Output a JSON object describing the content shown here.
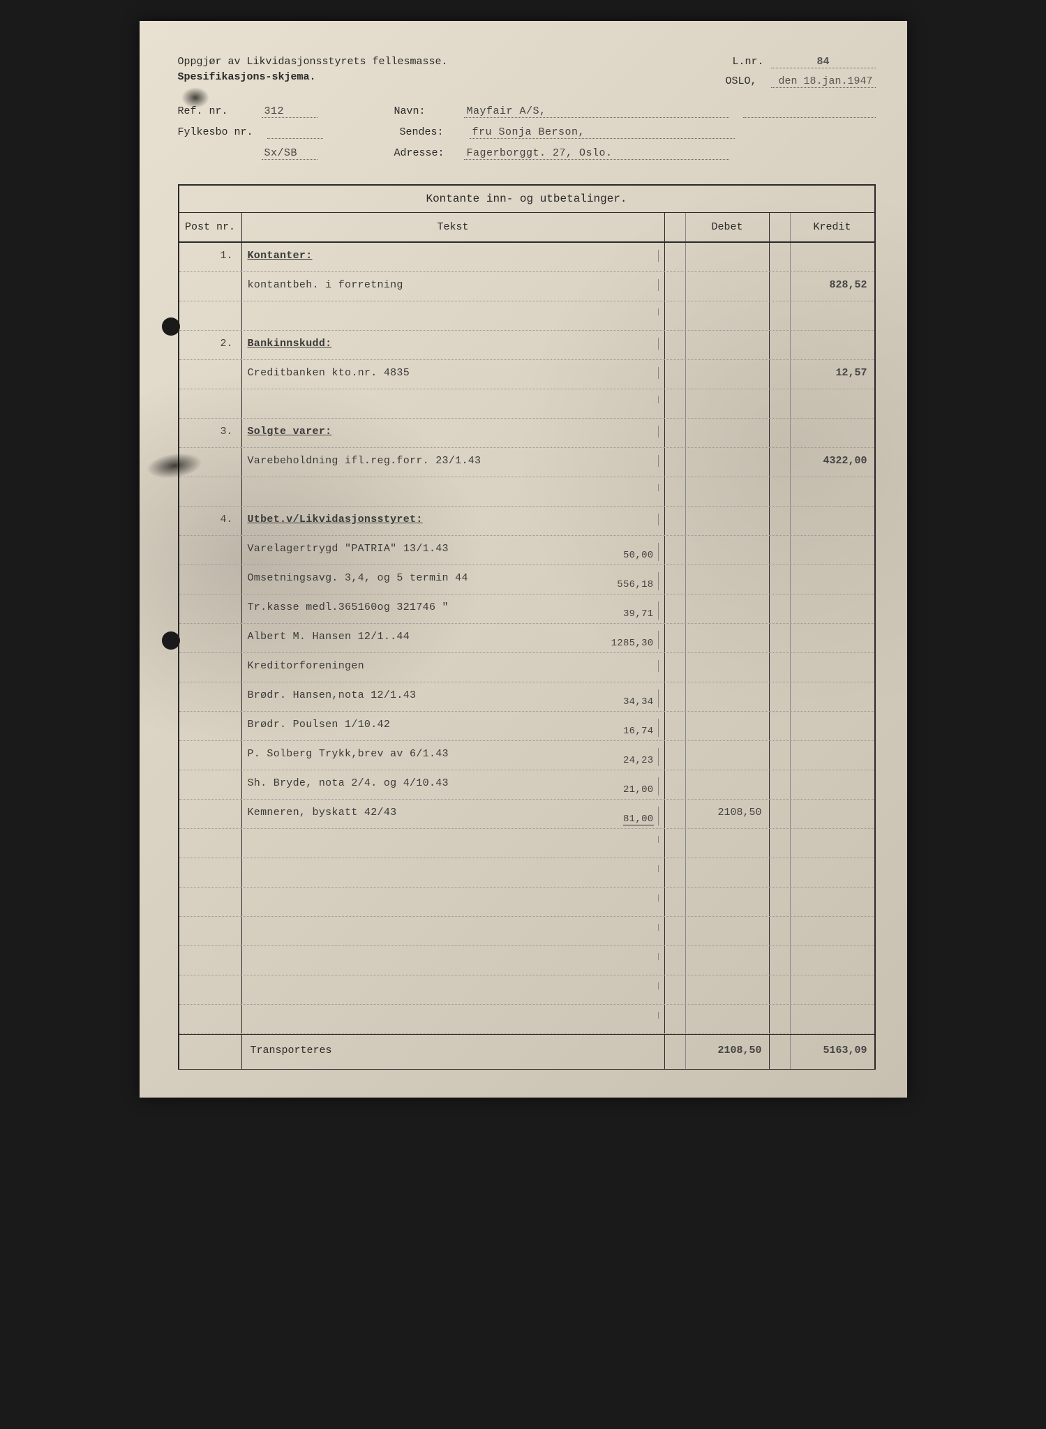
{
  "colors": {
    "page_bg": "#d8d0c0",
    "text": "#2a2a2a",
    "faded": "#555555",
    "border": "#2a2a2a"
  },
  "header": {
    "line1": "Oppgjør av Likvidasjonsstyrets fellesmasse.",
    "line2": "Spesifikasjons-skjema.",
    "lnr_label": "L.nr.",
    "lnr_value": "84",
    "city": "OSLO,",
    "date": "den 18.jan.1947"
  },
  "meta": {
    "ref_label": "Ref. nr.",
    "ref_value": "312",
    "fylkes_label": "Fylkesbo nr.",
    "fylkes_value": "Sx/SB",
    "navn_label": "Navn:",
    "navn_value": "Mayfair A/S,",
    "sendes_label": "Sendes:",
    "sendes_value": "fru Sonja Berson,",
    "adresse_label": "Adresse:",
    "adresse_value": "Fagerborggt. 27, Oslo."
  },
  "table": {
    "title": "Kontante inn- og utbetalinger.",
    "h_post": "Post nr.",
    "h_tekst": "Tekst",
    "h_debet": "Debet",
    "h_kredit": "Kredit",
    "transport_label": "Transporteres",
    "transport_debet": "2108,50",
    "transport_kredit": "5163,09"
  },
  "rows": [
    {
      "post": "1.",
      "text": "Kontanter:",
      "heading": true
    },
    {
      "text": "kontantbeh. i forretning",
      "kredit": "828,52"
    },
    {},
    {
      "post": "2.",
      "text": "Bankinnskudd:",
      "heading": true
    },
    {
      "text": "Creditbanken kto.nr. 4835",
      "kredit": "12,57"
    },
    {},
    {
      "post": "3.",
      "text": "Solgte varer:",
      "heading": true
    },
    {
      "text": "Varebeholdning ifl.reg.forr. 23/1.43",
      "kredit": "4322,00"
    },
    {},
    {
      "post": "4.",
      "text": "Utbet.v/Likvidasjonsstyret:",
      "heading": true
    },
    {
      "text": "Varelagertrygd \"PATRIA\"  13/1.43",
      "inner": "50,00"
    },
    {
      "text": "Omsetningsavg. 3,4, og 5 termin 44",
      "inner": "556,18"
    },
    {
      "text": "Tr.kasse medl.365160og 321746  \"",
      "inner": "39,71"
    },
    {
      "text": "Albert M. Hansen        12/1..44",
      "inner": "1285,30"
    },
    {
      "text": "Kreditorforeningen"
    },
    {
      "text": "    Brødr. Hansen,nota 12/1.43",
      "inner": "34,34"
    },
    {
      "text": "    Brødr. Poulsen 1/10.42",
      "inner": "16,74"
    },
    {
      "text": "P. Solberg Trykk,brev av 6/1.43",
      "inner": "24,23"
    },
    {
      "text": "Sh. Bryde, nota 2/4. og 4/10.43",
      "inner": "21,00"
    },
    {
      "text": "Kemneren, byskatt 42/43",
      "inner": "81,00",
      "inner_sum": true,
      "debet": "2108,50"
    },
    {},
    {},
    {},
    {},
    {},
    {},
    {}
  ]
}
